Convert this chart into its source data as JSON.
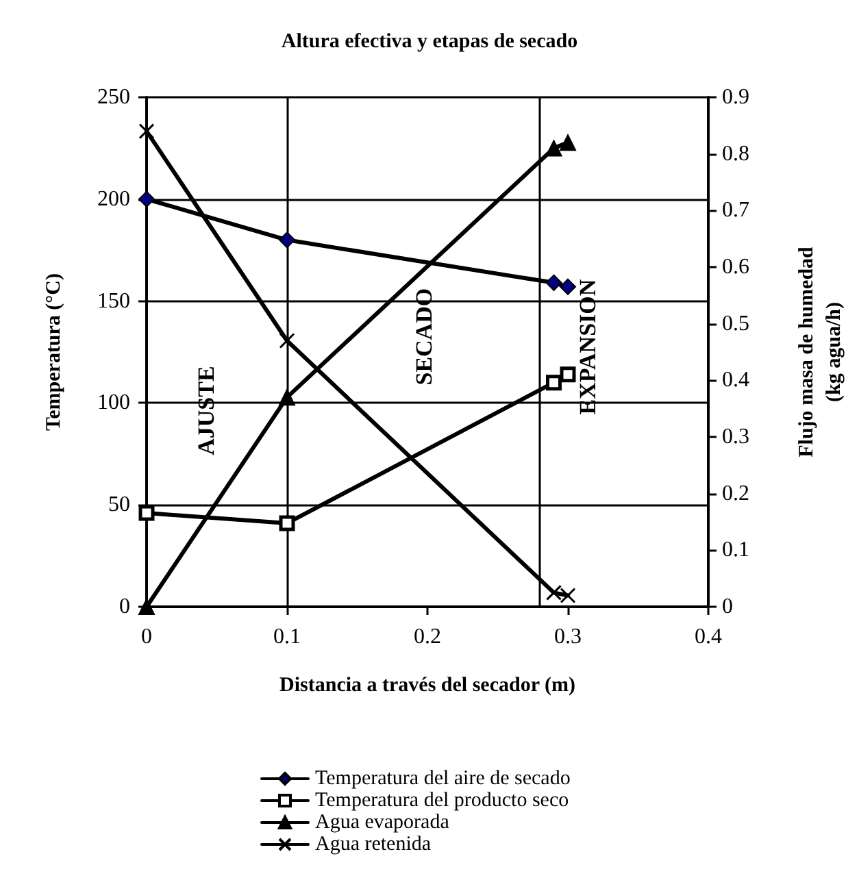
{
  "chart_data": {
    "type": "line",
    "title": "Altura efectiva y etapas de secado",
    "xlabel": "Distancia a través del secador (m)",
    "ylabel": "Temperatura (°C)",
    "y2label": "Flujo masa de humedad\n(kg agua/h)",
    "series": [
      {
        "name": "Temperatura del aire de secado",
        "color": "#000000",
        "marker": "diamond",
        "x": [
          0,
          0.1,
          0.29,
          0.3
        ],
        "values": [
          200,
          180,
          159,
          157
        ]
      },
      {
        "name": "Temperatura del producto seco",
        "color": "#000000",
        "marker": "square",
        "x": [
          0,
          0.1,
          0.29,
          0.3
        ],
        "values": [
          46,
          41,
          110,
          114
        ]
      },
      {
        "name": "Agua evaporada",
        "color": "#000000",
        "marker": "triangle",
        "axis": "y2",
        "x": [
          0,
          0.1,
          0.29,
          0.3
        ],
        "values": [
          0,
          0.37,
          0.81,
          0.82
        ]
      },
      {
        "name": "Agua retenida",
        "color": "#000000",
        "marker": "cross",
        "axis": "y2",
        "x": [
          0,
          0.1,
          0.29,
          0.3
        ],
        "values": [
          0.84,
          0.47,
          0.025,
          0.02
        ]
      }
    ],
    "xlim": [
      0,
      0.4
    ],
    "xticks": [
      0,
      0.1,
      0.2,
      0.3,
      0.4
    ],
    "ylim": [
      0,
      250
    ],
    "yticks": [
      0,
      50,
      100,
      150,
      200,
      250
    ],
    "y2lim": [
      0,
      0.9
    ],
    "y2ticks": [
      0,
      0.1,
      0.2,
      0.3,
      0.4,
      0.5,
      0.6,
      0.7,
      0.8,
      0.9
    ],
    "ref_lines": [
      {
        "axis": "x",
        "value": 0.1,
        "color": "#000000"
      },
      {
        "axis": "x",
        "value": 0.28,
        "color": "#000000"
      }
    ],
    "annotations": [
      "AJUSTE",
      "SECADO",
      "EXPANSION"
    ],
    "grid": "y",
    "legend": "bottom",
    "line_style": "solid"
  }
}
